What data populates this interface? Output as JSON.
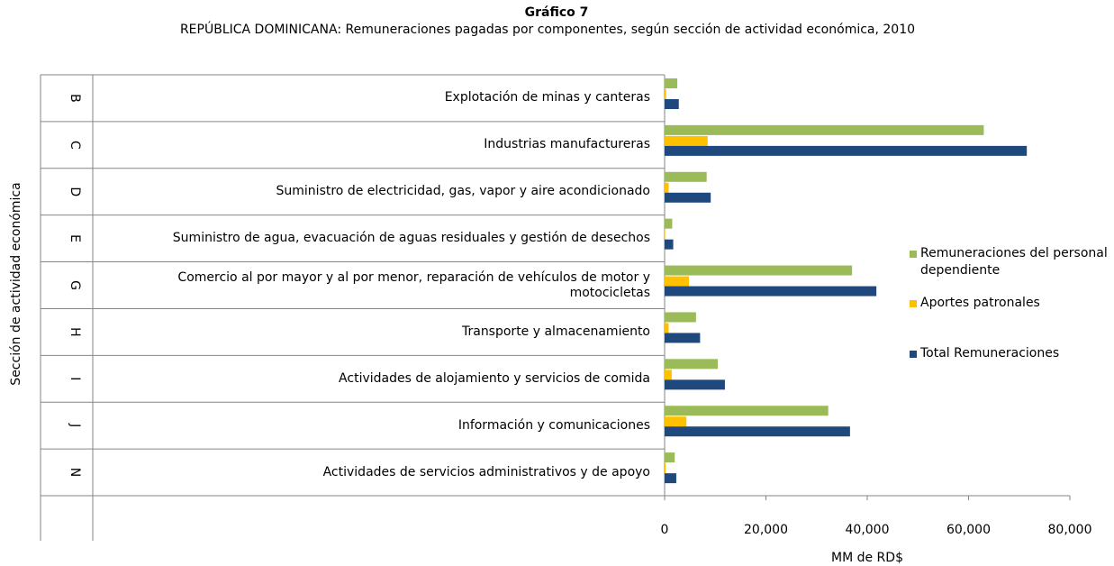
{
  "chart_data": {
    "type": "bar",
    "orientation": "horizontal",
    "title": "Gráfico 7",
    "subtitle": "REPÚBLICA DOMINICANA: Remuneraciones pagadas por componentes, según sección de actividad económica, 2010",
    "y_label": "Sección de actividad económica",
    "x_label": "MM de RD$",
    "category_codes": [
      "B",
      "C",
      "D",
      "E",
      "G",
      "H",
      "I",
      "J",
      "N"
    ],
    "categories": [
      "Explotación de minas y canteras",
      "Industrias manufactureras",
      "Suministro de electricidad, gas, vapor y aire acondicionado",
      "Suministro de agua, evacuación de aguas residuales y gestión de desechos",
      "Comercio al por mayor y al por menor, reparación de vehículos de motor y motocicletas",
      "Transporte y almacenamiento",
      "Actividades de alojamiento y servicios de comida",
      "Información y comunicaciones",
      "Actividades de servicios administrativos y de apoyo"
    ],
    "series": [
      {
        "name": "Remuneraciones del personal dependiente",
        "color": "#9bbb59",
        "values": [
          2500,
          63000,
          8300,
          1500,
          37000,
          6200,
          10500,
          32300,
          2000
        ]
      },
      {
        "name": "Aportes patronales",
        "color": "#ffc000",
        "values": [
          300,
          8500,
          800,
          100,
          4800,
          800,
          1400,
          4300,
          200
        ]
      },
      {
        "name": "Total Remuneraciones",
        "color": "#1f497d",
        "values": [
          2800,
          71500,
          9100,
          1700,
          41800,
          7000,
          11900,
          36600,
          2300
        ]
      }
    ],
    "xlim": [
      0,
      80000
    ],
    "xticks": [
      0,
      {
        "value": 20000,
        "label": "20,000"
      },
      {
        "value": 40000,
        "label": "40,000"
      },
      {
        "value": 60000,
        "label": "60,000"
      },
      {
        "value": 80000,
        "label": "80,000"
      }
    ],
    "legend": "right"
  }
}
